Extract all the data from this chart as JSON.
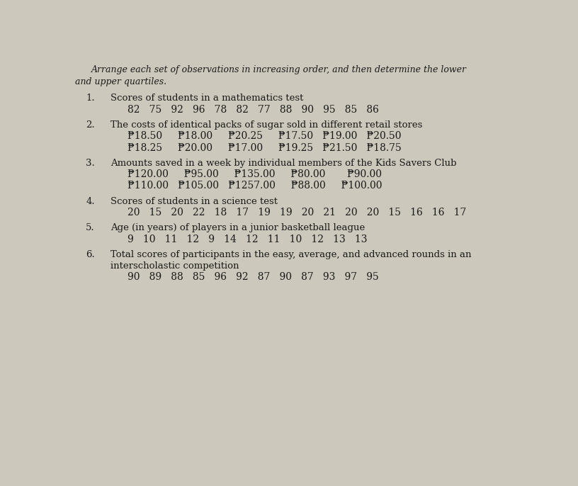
{
  "background_color": "#ccc8bc",
  "title_line1": "Arrange each set of observations in increasing order, and then determine the lower",
  "title_line2": "and upper quartiles.",
  "items": [
    {
      "number": "1.",
      "label": "Scores of students in a mathematics test",
      "label2": "",
      "data_lines": [
        "82   75   92   96   78   82   77   88   90   95   85   86"
      ]
    },
    {
      "number": "2.",
      "label": "The costs of identical packs of sugar sold in different retail stores",
      "label2": "",
      "data_lines": [
        "₱18.50     ₱18.00     ₱20.25     ₱17.50   ₱19.00   ₱20.50",
        "₱18.25     ₱20.00     ₱17.00     ₱19.25   ₱21.50   ₱18.75"
      ]
    },
    {
      "number": "3.",
      "label": "Amounts saved in a week by individual members of the Kids Savers Club",
      "label2": "",
      "data_lines": [
        "₱120.00     ₱95.00     ₱135.00     ₱80.00       ₱90.00",
        "₱110.00   ₱105.00   ₱1257.00     ₱88.00     ₱100.00"
      ]
    },
    {
      "number": "4.",
      "label": "Scores of students in a science test",
      "label2": "",
      "data_lines": [
        "20   15   20   22   18   17   19   19   20   21   20   20   15   16   16   17"
      ]
    },
    {
      "number": "5.",
      "label": "Age (in years) of players in a junior basketball league",
      "label2": "",
      "data_lines": [
        "9   10   11   12   9   14   12   11   10   12   13   13"
      ]
    },
    {
      "number": "6.",
      "label": "Total scores of participants in the easy, average, and advanced rounds in an",
      "label2": "interscholastic competition",
      "data_lines": [
        "90   89   88   85   96   92   87   90   87   93   97   95"
      ]
    }
  ],
  "title_fontsize": 9.0,
  "label_fontsize": 9.5,
  "data_fontsize": 10.0,
  "number_fontsize": 9.5,
  "text_color": "#1a1a1a"
}
